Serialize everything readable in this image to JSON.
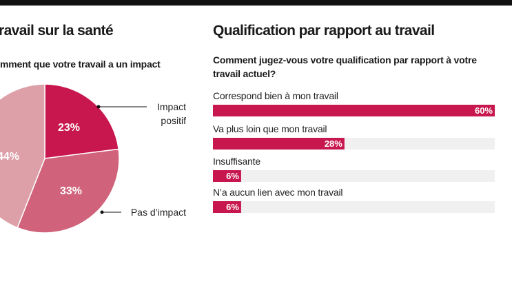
{
  "chart_data": [
    {
      "type": "pie",
      "title": "ravail sur la santé",
      "subtitle": "mment que votre travail a un impact",
      "categories": [
        "Impact positif",
        "Pas d’impact",
        null
      ],
      "values": [
        23,
        33,
        44
      ],
      "value_labels": [
        "23%",
        "33%",
        "44%"
      ],
      "colors": [
        "#c8174f",
        "#d0637b",
        "#dda0a8"
      ]
    },
    {
      "type": "bar",
      "orientation": "horizontal",
      "title": "Qualification par rapport au travail",
      "subtitle": "Comment jugez-vous votre qualification par rapport à votre travail actuel?",
      "categories": [
        "Correspond bien à mon travail",
        "Va plus loin que mon travail",
        "Insuffisante",
        "N’a aucun lien avec mon travail"
      ],
      "values": [
        60,
        28,
        6,
        6
      ],
      "value_labels": [
        "60%",
        "28%",
        "6%",
        "6%"
      ],
      "color": "#c8174f",
      "track_color": "#f0f0f0"
    }
  ]
}
